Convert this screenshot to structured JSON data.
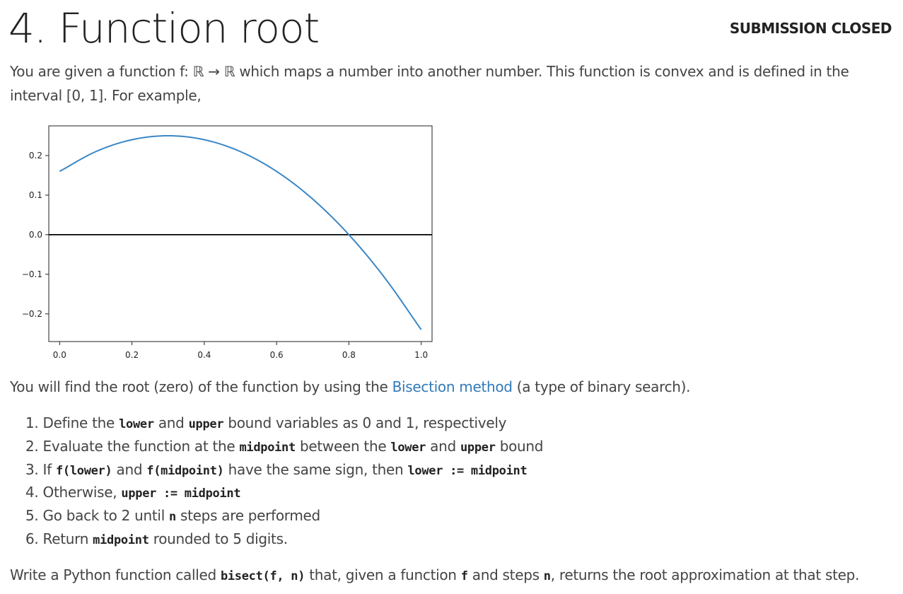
{
  "header": {
    "title": "4. Function root",
    "status": "SUBMISSION CLOSED"
  },
  "intro": {
    "text": "You are given a function f: ℝ → ℝ which maps a number into another number. This function is convex and is defined in the interval [0, 1]. For example,"
  },
  "chart_data": {
    "type": "line",
    "title": "",
    "xlabel": "",
    "ylabel": "",
    "xlim": [
      -0.03,
      1.03
    ],
    "ylim": [
      -0.27,
      0.275
    ],
    "x_ticks": [
      "0.0",
      "0.2",
      "0.4",
      "0.6",
      "0.8",
      "1.0"
    ],
    "y_ticks": [
      "0.2",
      "0.1",
      "0.0",
      "−0.1",
      "−0.2"
    ],
    "x_tick_values": [
      0.0,
      0.2,
      0.4,
      0.6,
      0.8,
      1.0
    ],
    "y_tick_values": [
      0.2,
      0.1,
      0.0,
      -0.1,
      -0.2
    ],
    "grid": false,
    "legend": "none",
    "series": [
      {
        "color": "#3a87c6",
        "x": [
          0.0,
          0.1,
          0.2,
          0.3,
          0.4,
          0.5,
          0.6,
          0.7,
          0.8,
          0.9,
          1.0
        ],
        "y": [
          0.16,
          0.21,
          0.24,
          0.25,
          0.24,
          0.21,
          0.16,
          0.09,
          0.0,
          -0.11,
          -0.24
        ]
      }
    ],
    "hlines": [
      {
        "y": 0.0,
        "color": "#000000"
      }
    ]
  },
  "body": {
    "p2_before": "You will find the root (zero) of the function by using the ",
    "p2_link": "Bisection method",
    "p2_after": " (a type of binary search).",
    "step1": {
      "n": "1. ",
      "a": "Define the ",
      "c1": "lower",
      "b": " and ",
      "c2": "upper",
      "c": " bound variables as 0 and 1, respectively"
    },
    "step2": {
      "n": "2. ",
      "a": "Evaluate the function at the ",
      "c1": "midpoint",
      "b": " between the ",
      "c2": "lower",
      "c": " and ",
      "c3": "upper",
      "d": " bound"
    },
    "step3": {
      "n": "3. ",
      "a": "If ",
      "c1": "f(lower)",
      "b": " and ",
      "c2": "f(midpoint)",
      "c": " have the same sign, then ",
      "c3": "lower := midpoint"
    },
    "step4": {
      "n": "4. ",
      "a": "Otherwise, ",
      "c1": "upper := midpoint"
    },
    "step5": {
      "n": "5. ",
      "a": "Go back to 2 until ",
      "c1": "n",
      "b": " steps are performed"
    },
    "step6": {
      "n": "6. ",
      "a": "Return ",
      "c1": "midpoint",
      "b": " rounded to 5 digits."
    },
    "p3": {
      "a": "Write a Python function called ",
      "c1": "bisect(f, n)",
      "b": " that, given a function ",
      "c2": "f",
      "c": " and steps ",
      "c3": "n",
      "d": ", returns the root approximation at that step."
    }
  }
}
